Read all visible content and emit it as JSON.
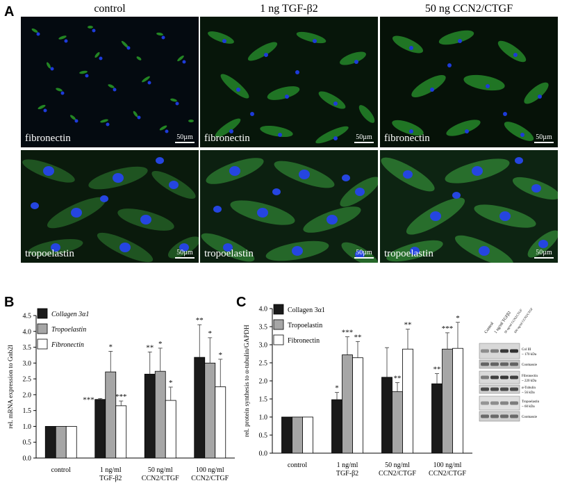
{
  "panel_a": {
    "letter": "A",
    "columns": [
      "control",
      "1 ng TGF-β2",
      "50 ng CCN2/CTGF"
    ],
    "rows": [
      {
        "label": "fibronectin",
        "scale": "50µm"
      },
      {
        "label": "tropoelastin",
        "scale": "50µm"
      }
    ]
  },
  "chart_data": [
    {
      "panel": "B",
      "type": "bar",
      "ylabel": "rel. mRNA expression to Gnb2l",
      "ylim": [
        0,
        4.5
      ],
      "yticks": [
        "0.0",
        "0.5",
        "1.0",
        "1.5",
        "2.0",
        "2.5",
        "3.0",
        "3.5",
        "4.0",
        "4.5"
      ],
      "categories": [
        {
          "line1": "control",
          "line2": ""
        },
        {
          "line1": "1 ng/ml",
          "line2": "TGF-β2"
        },
        {
          "line1": "50 ng/ml",
          "line2": "CCN2/CTGF"
        },
        {
          "line1": "100 ng/ml",
          "line2": "CCN2/CTGF"
        }
      ],
      "series": [
        {
          "name": "Collagen 3α1",
          "color": "#1a1a1a",
          "values": [
            1.0,
            1.85,
            2.65,
            3.18
          ],
          "errors": [
            0,
            0.03,
            0.7,
            1.03
          ],
          "sig": [
            "",
            "***",
            "**",
            "**"
          ]
        },
        {
          "name": "Tropoelastin",
          "color": "#a6a6a6",
          "values": [
            1.0,
            2.72,
            2.74,
            3.0
          ],
          "errors": [
            0,
            0.65,
            0.73,
            0.8
          ],
          "sig": [
            "",
            "*",
            "*",
            "*"
          ]
        },
        {
          "name": "Fibronectin",
          "color": "#ffffff",
          "values": [
            1.0,
            1.65,
            1.82,
            2.25
          ],
          "errors": [
            0,
            0.15,
            0.42,
            0.87
          ],
          "sig": [
            "",
            "***",
            "*",
            "*"
          ]
        }
      ]
    },
    {
      "panel": "C",
      "type": "bar",
      "ylabel": "rel. protein synthesis to α-tubulin/GAPDH",
      "ylim": [
        0,
        4.0
      ],
      "yticks": [
        "0.0",
        "0.5",
        "1.0",
        "1.5",
        "2.0",
        "2.5",
        "3.0",
        "3.5",
        "4.0"
      ],
      "categories": [
        {
          "line1": "control",
          "line2": ""
        },
        {
          "line1": "1 ng/ml",
          "line2": "TGF-β2"
        },
        {
          "line1": "50 ng/ml",
          "line2": "CCN2/CTGF"
        },
        {
          "line1": "100 ng/ml",
          "line2": "CCN2/CTGF"
        }
      ],
      "series": [
        {
          "name": "Collagen 3α1",
          "color": "#1a1a1a",
          "values": [
            1.0,
            1.48,
            2.1,
            1.92
          ],
          "errors": [
            0,
            0.2,
            0.82,
            0.28
          ],
          "sig": [
            "",
            "*",
            "",
            "**"
          ]
        },
        {
          "name": "Tropoelastin",
          "color": "#a6a6a6",
          "values": [
            1.0,
            2.72,
            1.7,
            2.88
          ],
          "errors": [
            0,
            0.5,
            0.25,
            0.45
          ],
          "sig": [
            "",
            "***",
            "**",
            "***"
          ]
        },
        {
          "name": "Fibronectin",
          "color": "#ffffff",
          "values": [
            1.0,
            2.64,
            2.88,
            2.9
          ],
          "errors": [
            0,
            0.45,
            0.55,
            0.72
          ],
          "sig": [
            "",
            "**",
            "**",
            "*"
          ]
        }
      ]
    }
  ],
  "blot": {
    "lanes": [
      "Control",
      "1 ng/ml TGFβ2",
      "50 ng/ml CCN2/CTGF",
      "100 ng/ml CCN2/CTGF"
    ],
    "bands": [
      {
        "label1": "Col III",
        "label2": "~ 170 kDa"
      },
      {
        "label1": "Coomassie",
        "label2": ""
      },
      {
        "label1": "Fibronectin",
        "label2": "~ 220 kDa"
      },
      {
        "label1": "α-Tubulin",
        "label2": "~ 56 kDa"
      },
      {
        "label1": "Tropoelastin",
        "label2": "~ 60 kDa"
      },
      {
        "label1": "Coomassie",
        "label2": ""
      }
    ]
  }
}
